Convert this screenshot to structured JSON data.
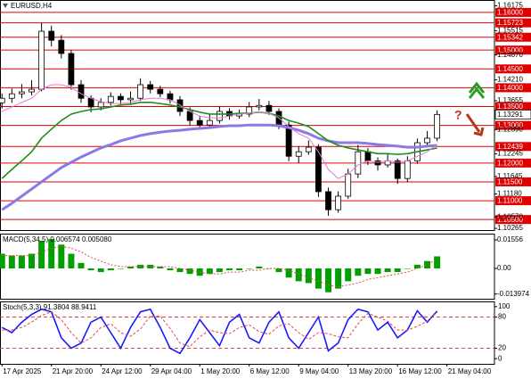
{
  "chart_data": [
    {
      "type": "candlestick",
      "title": "EURUSD,H4",
      "x": [
        0,
        1,
        2,
        3,
        4,
        5,
        6,
        7,
        8,
        9,
        10,
        11,
        12,
        13,
        14,
        15,
        16,
        17,
        18,
        19,
        20,
        21,
        22,
        23,
        24,
        25,
        26,
        27,
        28,
        29,
        30,
        31,
        32,
        33,
        34,
        35,
        36,
        37,
        38,
        39,
        40,
        41,
        42,
        43,
        44
      ],
      "open": [
        1.136,
        1.1372,
        1.1384,
        1.1389,
        1.1396,
        1.155,
        1.1526,
        1.1491,
        1.1408,
        1.1372,
        1.1349,
        1.1361,
        1.1377,
        1.1368,
        1.1372,
        1.1408,
        1.1396,
        1.1384,
        1.1368,
        1.1337,
        1.1313,
        1.1301,
        1.1313,
        1.1337,
        1.1325,
        1.133,
        1.1349,
        1.1353,
        1.1337,
        1.1301,
        1.1218,
        1.123,
        1.1242,
        1.1124,
        1.1076,
        1.1112,
        1.1171,
        1.123,
        1.1206,
        1.1195,
        1.1206,
        1.1159,
        1.1206,
        1.1254,
        1.1266
      ],
      "high": [
        1.1385,
        1.1398,
        1.141,
        1.142,
        1.1572,
        1.1565,
        1.154,
        1.15,
        1.142,
        1.138,
        1.1372,
        1.1388,
        1.1385,
        1.139,
        1.1425,
        1.1418,
        1.1405,
        1.1392,
        1.1378,
        1.1348,
        1.1325,
        1.133,
        1.135,
        1.1346,
        1.1342,
        1.1362,
        1.137,
        1.1365,
        1.1345,
        1.131,
        1.1245,
        1.126,
        1.125,
        1.1135,
        1.1125,
        1.1185,
        1.1248,
        1.124,
        1.1215,
        1.1225,
        1.1212,
        1.1218,
        1.1265,
        1.1285,
        1.134
      ],
      "low": [
        1.1345,
        1.136,
        1.1372,
        1.138,
        1.139,
        1.151,
        1.1478,
        1.1395,
        1.136,
        1.1335,
        1.134,
        1.1352,
        1.1355,
        1.1358,
        1.1365,
        1.1385,
        1.1375,
        1.1358,
        1.1325,
        1.13,
        1.129,
        1.1292,
        1.1305,
        1.1315,
        1.1318,
        1.1322,
        1.134,
        1.1328,
        1.129,
        1.1205,
        1.12,
        1.1222,
        1.111,
        1.106,
        1.1068,
        1.1105,
        1.116,
        1.1195,
        1.118,
        1.1188,
        1.1145,
        1.115,
        1.1198,
        1.1245,
        1.1258
      ],
      "close": [
        1.1372,
        1.1384,
        1.1389,
        1.1396,
        1.155,
        1.1526,
        1.1491,
        1.1408,
        1.1372,
        1.1349,
        1.1361,
        1.1377,
        1.1368,
        1.1372,
        1.1408,
        1.1396,
        1.1384,
        1.1368,
        1.1337,
        1.1313,
        1.1301,
        1.1313,
        1.1337,
        1.1325,
        1.133,
        1.1349,
        1.1353,
        1.1337,
        1.1301,
        1.1218,
        1.123,
        1.1242,
        1.1124,
        1.1076,
        1.1112,
        1.1171,
        1.123,
        1.1206,
        1.1195,
        1.1206,
        1.1159,
        1.1206,
        1.1254,
        1.1266,
        1.13291
      ],
      "up_color": "#ffffff",
      "down_color": "#000000",
      "moving_averages": [
        {
          "color": "#8c78e6",
          "values": [
            1.1076,
            1.1093,
            1.1112,
            1.1131,
            1.115,
            1.1169,
            1.1188,
            1.1202,
            1.1216,
            1.1228,
            1.124,
            1.1249,
            1.1259,
            1.1266,
            1.1273,
            1.1278,
            1.1282,
            1.1285,
            1.1287,
            1.129,
            1.1292,
            1.1294,
            1.1297,
            1.1299,
            1.1299,
            1.1301,
            1.1301,
            1.1301,
            1.1299,
            1.1294,
            1.1287,
            1.1278,
            1.1266,
            1.1259,
            1.1254,
            1.1254,
            1.1254,
            1.1252,
            1.1249,
            1.1247,
            1.1245,
            1.1242,
            1.1242,
            1.1245,
            1.1247
          ]
        },
        {
          "color": "#1e8c1e",
          "values": [
            1.1159,
            1.1183,
            1.1206,
            1.123,
            1.1266,
            1.129,
            1.1313,
            1.133,
            1.1337,
            1.1342,
            1.1344,
            1.1349,
            1.1354,
            1.1356,
            1.1361,
            1.1361,
            1.1358,
            1.1354,
            1.1349,
            1.1342,
            1.1335,
            1.133,
            1.133,
            1.133,
            1.1332,
            1.1332,
            1.1335,
            1.1332,
            1.1325,
            1.1313,
            1.1306,
            1.1297,
            1.1278,
            1.1259,
            1.1247,
            1.124,
            1.1235,
            1.123,
            1.1225,
            1.1225,
            1.1223,
            1.1225,
            1.123,
            1.1235,
            1.124
          ]
        },
        {
          "color": "#e27ad6",
          "values": [
            1.1337,
            1.1349,
            1.1361,
            1.1372,
            1.1396,
            1.1408,
            1.1408,
            1.1401,
            1.1384,
            1.1372,
            1.1363,
            1.1358,
            1.1358,
            1.1361,
            1.1368,
            1.1372,
            1.1372,
            1.1368,
            1.1354,
            1.1337,
            1.1325,
            1.132,
            1.132,
            1.1325,
            1.133,
            1.1332,
            1.1335,
            1.1332,
            1.132,
            1.1297,
            1.1278,
            1.1266,
            1.123,
            1.1183,
            1.1159,
            1.1171,
            1.1195,
            1.1206,
            1.1202,
            1.1206,
            1.1202,
            1.1206,
            1.1218,
            1.123,
            1.1249
          ]
        }
      ],
      "ylim": [
        1.1022,
        1.1633
      ],
      "yticks": [
        1.16175,
        1.15515,
        {
          "value": 1.1487,
          "label": "1.14870"
        },
        {
          "value": 1.1421,
          "label": "1.14210"
        },
        1.13655,
        {
          "value": 1.1289,
          "label": "1.12890"
        },
        1.12245,
        1.11645,
        {
          "value": 1.1118,
          "label": "1.11180"
        },
        {
          "value": 1.1057,
          "label": "1.10570"
        },
        1.10265
      ],
      "levels": [
        {
          "value": 1.16,
          "label": "1.16000"
        },
        1.15723,
        1.15342,
        {
          "value": 1.15,
          "label": "1.15000"
        },
        {
          "value": 1.145,
          "label": "1.14500"
        },
        {
          "value": 1.14,
          "label": "1.14000"
        },
        {
          "value": 1.135,
          "label": "1.13500"
        },
        {
          "value": 1.13,
          "label": "1.13000"
        },
        1.12439,
        {
          "value": 1.12,
          "label": "1.12000"
        },
        {
          "value": 1.115,
          "label": "1.11500"
        },
        {
          "value": 1.11,
          "label": "1.11000"
        },
        {
          "value": 1.105,
          "label": "1.10500"
        }
      ],
      "level_color": "#e00000",
      "current_price": 1.13291,
      "xlim": [
        -0.2,
        49.8
      ],
      "xticks": [
        {
          "value": 0,
          "label": "17 Apr 2025"
        },
        {
          "value": 5,
          "label": "21 Apr 20:00"
        },
        {
          "value": 10,
          "label": "24 Apr 12:00"
        },
        {
          "value": 15,
          "label": "29 Apr 04:00"
        },
        {
          "value": 20,
          "label": "1 May 20:00"
        },
        {
          "value": 25,
          "label": "6 May 12:00"
        },
        {
          "value": 30,
          "label": "9 May 04:00"
        },
        {
          "value": 35,
          "label": "13 May 20:00"
        },
        {
          "value": 40,
          "label": "16 May 12:00"
        },
        {
          "value": 45,
          "label": "21 May 04:00"
        }
      ],
      "annotation": "?"
    },
    {
      "type": "bar",
      "title": "MACD(5,34,5) 0.006574 0.005080",
      "values": [
        0.008,
        0.007,
        0.007,
        0.008,
        0.015,
        0.016,
        0.013,
        0.008,
        0.003,
        -0.001,
        -0.002,
        -0.001,
        0,
        0.001,
        0.002,
        0.002,
        0.001,
        -0.001,
        -0.002,
        -0.003,
        -0.004,
        -0.003,
        -0.002,
        -0.001,
        -0.001,
        0,
        0.001,
        0,
        -0.002,
        -0.005,
        -0.007,
        -0.008,
        -0.011,
        -0.013,
        -0.011,
        -0.007,
        -0.004,
        -0.003,
        -0.003,
        -0.002,
        -0.002,
        0,
        0.002,
        0.004,
        0.006574
      ],
      "color": "#00a000",
      "signal": {
        "color": "#e04848",
        "values": [
          0.007,
          0.007,
          0.007,
          0.007,
          0.009,
          0.011,
          0.012,
          0.011,
          0.009,
          0.006,
          0.004,
          0.002,
          0.001,
          0.001,
          0.001,
          0.001,
          0.001,
          0.001,
          0,
          -0.001,
          -0.002,
          -0.003,
          -0.003,
          -0.002,
          -0.002,
          -0.001,
          -0.001,
          0,
          0,
          -0.001,
          -0.003,
          -0.005,
          -0.007,
          -0.009,
          -0.01,
          -0.009,
          -0.008,
          -0.006,
          -0.005,
          -0.004,
          -0.003,
          -0.002,
          0,
          0.002,
          0.00508
        ]
      },
      "ylim": [
        -0.01654,
        0.01897
      ],
      "yticks": [
        0.01556,
        {
          "value": 0,
          "label": "0.00"
        },
        -0.013974
      ]
    },
    {
      "type": "line",
      "title": "Stoch(5,3,3) 91.3804 88.9411",
      "series": [
        {
          "color": "#1a1aff",
          "values": [
            60,
            50,
            70,
            85,
            95,
            90,
            40,
            20,
            30,
            70,
            80,
            50,
            20,
            60,
            90,
            95,
            60,
            20,
            10,
            40,
            75,
            50,
            25,
            70,
            85,
            40,
            30,
            70,
            90,
            40,
            20,
            50,
            80,
            15,
            30,
            75,
            95,
            90,
            55,
            70,
            40,
            55,
            92,
            70,
            91.3804
          ]
        },
        {
          "color": "#e04848",
          "values": [
            55,
            55,
            60,
            70,
            83,
            90,
            75,
            50,
            30,
            40,
            60,
            67,
            50,
            43,
            57,
            82,
            82,
            58,
            30,
            23,
            42,
            55,
            50,
            48,
            60,
            65,
            52,
            47,
            63,
            67,
            50,
            37,
            50,
            48,
            42,
            40,
            67,
            87,
            80,
            72,
            55,
            55,
            62,
            72,
            88.9411
          ]
        }
      ],
      "ylim": [
        -10,
        110
      ],
      "yticks": [
        100,
        80,
        20,
        0
      ],
      "levels": [
        80,
        20
      ],
      "level_color": "#e04848"
    }
  ]
}
